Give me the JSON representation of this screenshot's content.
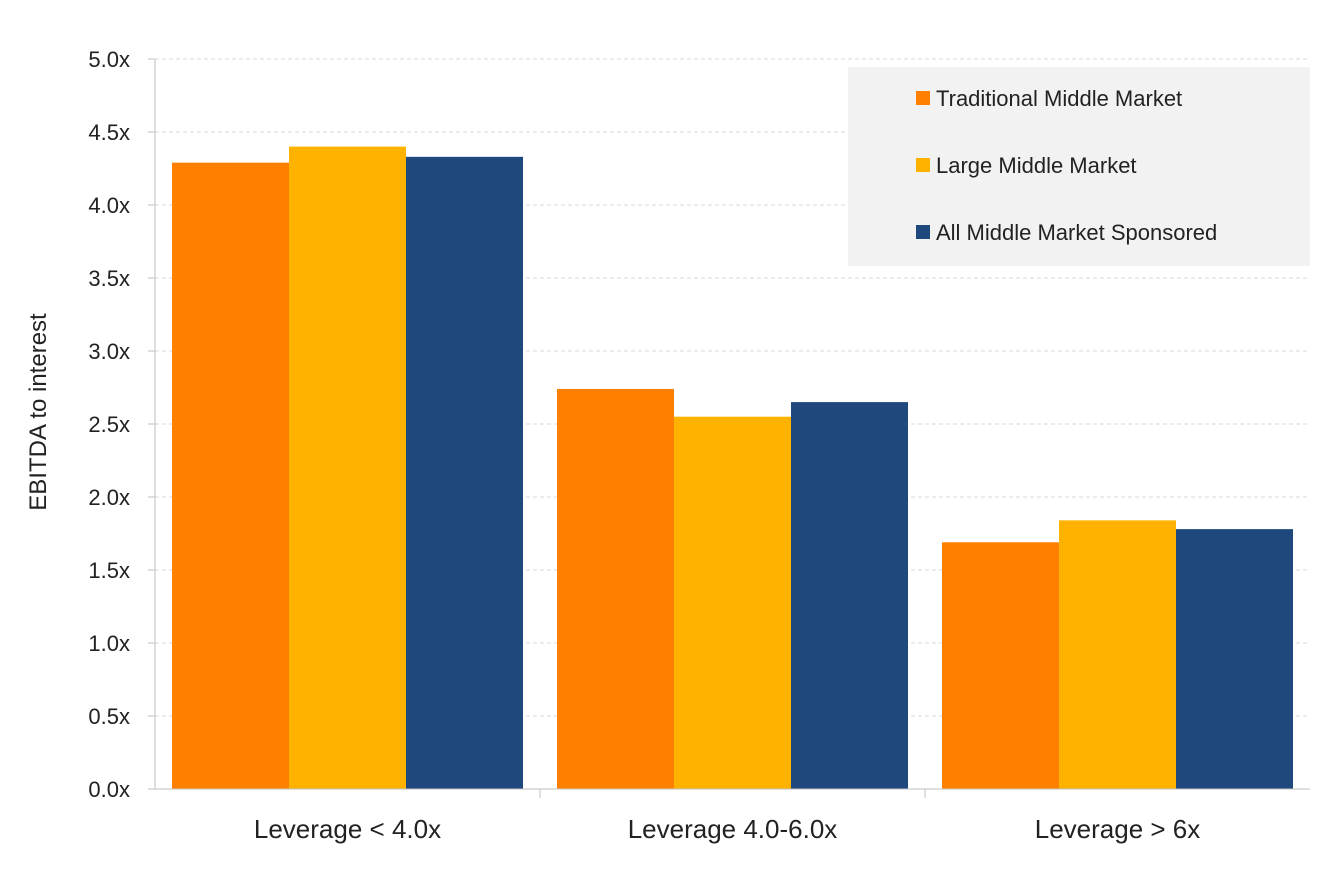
{
  "chart_data": {
    "type": "bar",
    "categories": [
      "Leverage < 4.0x",
      "Leverage 4.0-6.0x",
      "Leverage > 6x"
    ],
    "series": [
      {
        "name": "Traditional Middle Market",
        "color": "#FF8000",
        "values": [
          4.29,
          2.74,
          1.69
        ]
      },
      {
        "name": "Large Middle Market",
        "color": "#FFB300",
        "values": [
          4.4,
          2.55,
          1.84
        ]
      },
      {
        "name": "All Middle Market Sponsored",
        "color": "#1F497D",
        "values": [
          4.33,
          2.65,
          1.78
        ]
      }
    ],
    "ylabel": "EBITDA to interest",
    "ylim": [
      0,
      5
    ],
    "yticks": [
      0,
      0.5,
      1,
      1.5,
      2,
      2.5,
      3,
      3.5,
      4,
      4.5,
      5
    ],
    "ytick_labels": [
      "0.0x",
      "0.5x",
      "1.0x",
      "1.5x",
      "2.0x",
      "2.5x",
      "3.0x",
      "3.5x",
      "4.0x",
      "4.5x",
      "5.0x"
    ],
    "grid": true,
    "legend_position": "top-right"
  }
}
